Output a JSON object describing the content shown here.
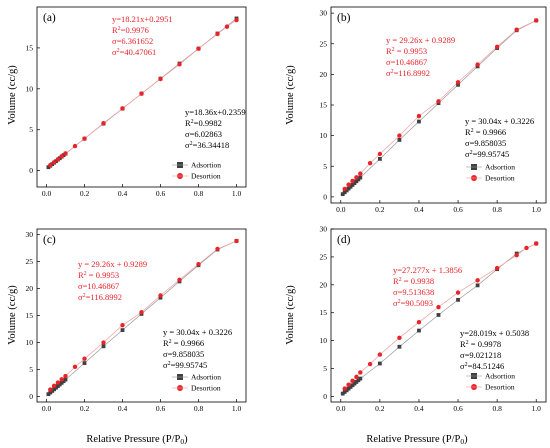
{
  "figure": {
    "ylabel": "Volume (cc/g)",
    "xlabel": "Relative Pressure (P/P",
    "xlabel_sub": "0",
    "xlabel_close": ")"
  },
  "chart_data": [
    {
      "type": "scatter",
      "panel": "(a)",
      "xlim": [
        -0.05,
        1.05
      ],
      "ylim": [
        -2,
        20
      ],
      "xticks": [
        "0.0",
        "0.2",
        "0.4",
        "0.6",
        "0.8",
        "1.0"
      ],
      "yticks": [
        "0",
        "5",
        "10",
        "15"
      ],
      "ytick_values": [
        0,
        5,
        10,
        15
      ],
      "legend": [
        "Adsortion",
        "Desortion"
      ],
      "desorption_annotation": [
        "y=18.21x+0.2951",
        "R²=0.9976",
        "σ=6.361652",
        "σ²=40.47061"
      ],
      "adsorption_annotation": [
        "y=18.36x+0.2359",
        "R²=0.9982",
        "σ=6.02863",
        "σ²=36.34418"
      ],
      "series": [
        {
          "name": "Adsortion",
          "color": "#404040",
          "marker": "square",
          "x": [
            0.01,
            0.02,
            0.03,
            0.04,
            0.05,
            0.06,
            0.07,
            0.08,
            0.09,
            0.1,
            0.2,
            0.3,
            0.4,
            0.5,
            0.6,
            0.7,
            0.8,
            0.9,
            1.0
          ],
          "y": [
            0.42,
            0.6,
            0.79,
            0.97,
            1.15,
            1.34,
            1.52,
            1.71,
            1.89,
            2.07,
            3.91,
            5.74,
            7.58,
            9.42,
            11.25,
            13.09,
            14.92,
            16.76,
            18.6
          ]
        },
        {
          "name": "Desortion",
          "color": "#e8232a",
          "marker": "circle",
          "x": [
            1.0,
            0.95,
            0.9,
            0.8,
            0.7,
            0.6,
            0.5,
            0.4,
            0.3,
            0.2,
            0.15,
            0.1,
            0.08,
            0.06,
            0.04,
            0.02
          ],
          "y": [
            18.4,
            17.6,
            16.7,
            14.9,
            13.0,
            11.2,
            9.4,
            7.6,
            5.8,
            3.9,
            3.0,
            2.1,
            1.75,
            1.39,
            1.02,
            0.66
          ]
        }
      ]
    },
    {
      "type": "scatter",
      "panel": "(b)",
      "xlim": [
        -0.05,
        1.05
      ],
      "ylim": [
        -1,
        31
      ],
      "xticks": [
        "0.0",
        "0.2",
        "0.4",
        "0.6",
        "0.8",
        "1.0"
      ],
      "yticks": [
        "0",
        "5",
        "10",
        "15",
        "20",
        "25",
        "30"
      ],
      "ytick_values": [
        0,
        5,
        10,
        15,
        20,
        25,
        30
      ],
      "legend": [
        "Adsortion",
        "Desortion"
      ],
      "desorption_annotation": [
        "y = 29.26x + 0.9289",
        "R² = 0.9953",
        "σ=10.46867",
        "σ²=116.8992"
      ],
      "adsorption_annotation": [
        "y = 30.04x + 0.3226",
        "R² = 0.9966",
        "σ=9.858035",
        "σ²=99.95745"
      ],
      "series": [
        {
          "name": "Adsortion",
          "color": "#404040",
          "marker": "square",
          "x": [
            0.01,
            0.02,
            0.03,
            0.04,
            0.05,
            0.06,
            0.07,
            0.08,
            0.09,
            0.1,
            0.2,
            0.3,
            0.4,
            0.5,
            0.6,
            0.7,
            0.8,
            0.9,
            1.0
          ],
          "y": [
            0.45,
            0.75,
            1.05,
            1.35,
            1.65,
            1.95,
            2.25,
            2.55,
            2.85,
            3.15,
            6.2,
            9.3,
            12.3,
            15.3,
            18.3,
            21.3,
            24.3,
            27.2,
            28.8
          ]
        },
        {
          "name": "Desortion",
          "color": "#e8232a",
          "marker": "circle",
          "x": [
            1.0,
            0.9,
            0.8,
            0.7,
            0.6,
            0.5,
            0.4,
            0.3,
            0.2,
            0.15,
            0.1,
            0.08,
            0.06,
            0.04,
            0.02
          ],
          "y": [
            28.8,
            27.3,
            24.5,
            21.6,
            18.7,
            15.6,
            13.2,
            10.0,
            7.0,
            5.5,
            3.8,
            3.2,
            2.6,
            2.0,
            1.3
          ]
        }
      ]
    },
    {
      "type": "scatter",
      "panel": "(c)",
      "xlim": [
        -0.05,
        1.05
      ],
      "ylim": [
        -1,
        31
      ],
      "xticks": [
        "0.0",
        "0.2",
        "0.4",
        "0.6",
        "0.8",
        "1.0"
      ],
      "yticks": [
        "0",
        "5",
        "10",
        "15",
        "20",
        "25",
        "30"
      ],
      "ytick_values": [
        0,
        5,
        10,
        15,
        20,
        25,
        30
      ],
      "legend": [
        "Adsortion",
        "Desortion"
      ],
      "desorption_annotation": [
        "y = 29.26x + 0.9289",
        "R² = 0.9953",
        "σ=10.46867",
        "σ²=116.8992"
      ],
      "adsorption_annotation": [
        "y = 30.04x + 0.3226",
        "R² = 0.9966",
        "σ=9.858035",
        "σ²=99.95745"
      ],
      "series": [
        {
          "name": "Adsortion",
          "color": "#404040",
          "marker": "square",
          "x": [
            0.01,
            0.02,
            0.03,
            0.04,
            0.05,
            0.06,
            0.07,
            0.08,
            0.09,
            0.1,
            0.2,
            0.3,
            0.4,
            0.5,
            0.6,
            0.7,
            0.8,
            0.9,
            1.0
          ],
          "y": [
            0.45,
            0.75,
            1.05,
            1.35,
            1.65,
            1.95,
            2.25,
            2.55,
            2.85,
            3.15,
            6.2,
            9.3,
            12.3,
            15.3,
            18.3,
            21.3,
            24.3,
            27.2,
            28.8
          ]
        },
        {
          "name": "Desortion",
          "color": "#e8232a",
          "marker": "circle",
          "x": [
            1.0,
            0.9,
            0.8,
            0.7,
            0.6,
            0.5,
            0.4,
            0.3,
            0.2,
            0.15,
            0.1,
            0.08,
            0.06,
            0.04,
            0.02
          ],
          "y": [
            28.8,
            27.3,
            24.5,
            21.6,
            18.7,
            15.6,
            13.2,
            10.0,
            7.0,
            5.5,
            3.8,
            3.2,
            2.6,
            2.0,
            1.3
          ]
        }
      ]
    },
    {
      "type": "scatter",
      "panel": "(d)",
      "xlim": [
        -0.05,
        1.05
      ],
      "ylim": [
        -1,
        30
      ],
      "xticks": [
        "0.0",
        "0.2",
        "0.4",
        "0.6",
        "0.8",
        "1.0"
      ],
      "yticks": [
        "0",
        "5",
        "10",
        "15",
        "20",
        "25",
        "30"
      ],
      "ytick_values": [
        0,
        5,
        10,
        15,
        20,
        25,
        30
      ],
      "legend": [
        "Adsortion",
        "Desortion"
      ],
      "desorption_annotation": [
        "y=27.277x + 1.3856",
        "R² = 0.9938",
        "σ=9.513638",
        "σ²=90.5093"
      ],
      "adsorption_annotation": [
        "y=28.019x + 0.5038",
        "R² = 0.9978",
        "σ=9.021218",
        "σ²=84.51246"
      ],
      "series": [
        {
          "name": "Adsortion",
          "color": "#404040",
          "marker": "square",
          "x": [
            0.01,
            0.02,
            0.03,
            0.04,
            0.05,
            0.06,
            0.07,
            0.08,
            0.09,
            0.1,
            0.2,
            0.3,
            0.4,
            0.5,
            0.6,
            0.7,
            0.8,
            0.9,
            1.0
          ],
          "y": [
            0.5,
            0.8,
            1.1,
            1.4,
            1.7,
            2.0,
            2.3,
            2.6,
            2.9,
            3.2,
            5.9,
            8.9,
            11.8,
            14.6,
            17.3,
            19.9,
            22.8,
            25.6,
            27.4
          ]
        },
        {
          "name": "Desortion",
          "color": "#e8232a",
          "marker": "circle",
          "x": [
            1.0,
            0.95,
            0.9,
            0.8,
            0.7,
            0.6,
            0.5,
            0.4,
            0.3,
            0.2,
            0.15,
            0.1,
            0.08,
            0.06,
            0.04,
            0.02
          ],
          "y": [
            27.4,
            26.6,
            25.3,
            23.0,
            20.8,
            18.6,
            16.0,
            13.3,
            10.5,
            7.5,
            5.8,
            4.3,
            3.5,
            2.8,
            2.1,
            1.4
          ]
        }
      ]
    }
  ]
}
